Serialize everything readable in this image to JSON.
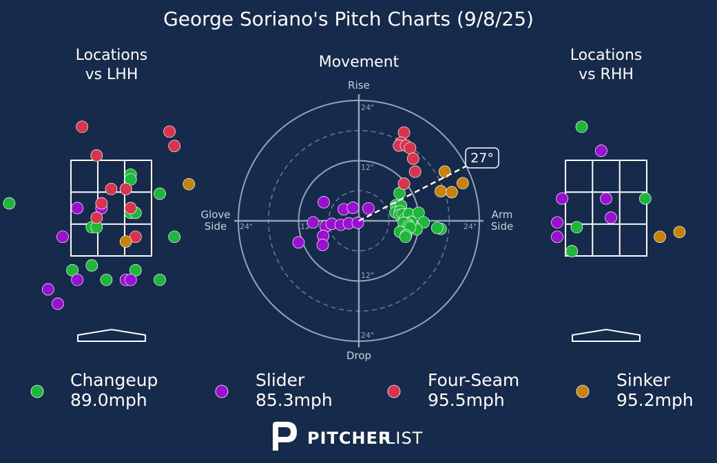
{
  "title": "George Soriano's Pitch Charts (9/8/25)",
  "panels": {
    "lhh_title": [
      "Locations",
      "vs LHH"
    ],
    "movement_title": "Movement",
    "rhh_title": [
      "Locations",
      "vs RHH"
    ]
  },
  "movement_axes": {
    "top": "Rise",
    "bottom": "Drop",
    "left": [
      "Glove",
      "Side"
    ],
    "right": [
      "Arm",
      "Side"
    ],
    "ring_labels": {
      "outer": "24\"",
      "inner": "12\""
    },
    "arm_angle_label": "27°",
    "arm_angle_deg": 27
  },
  "colors": {
    "background": "#162a4c",
    "Changeup": "#1db83a",
    "Slider": "#9a0fd1",
    "Four-Seam": "#d8344e",
    "Sinker": "#c98208"
  },
  "legend": [
    {
      "pitch": "Changeup",
      "speed": "89.0mph"
    },
    {
      "pitch": "Slider",
      "speed": "85.3mph"
    },
    {
      "pitch": "Four-Seam",
      "speed": "95.5mph"
    },
    {
      "pitch": "Sinker",
      "speed": "95.2mph"
    }
  ],
  "logo": {
    "strong": "PITCHER",
    "light": "LIST"
  },
  "chart_data": [
    {
      "type": "scatter",
      "title": "Locations vs LHH",
      "xlim": [
        -2.5,
        2.5
      ],
      "ylim": [
        -0.5,
        4.5
      ],
      "strike_zone": {
        "x": [
          -0.83,
          0.83
        ],
        "y": [
          1.5,
          3.5
        ]
      },
      "series": [
        {
          "name": "Changeup",
          "points": [
            [
              -2.1,
              2.6
            ],
            [
              -0.4,
              2.1
            ],
            [
              -0.3,
              2.1
            ],
            [
              0.4,
              3.2
            ],
            [
              0.4,
              3.1
            ],
            [
              0.4,
              2.4
            ],
            [
              0.5,
              2.4
            ],
            [
              1.0,
              2.8
            ],
            [
              1.3,
              1.9
            ],
            [
              -0.8,
              1.2
            ],
            [
              -0.4,
              1.3
            ],
            [
              -0.1,
              1.0
            ],
            [
              0.5,
              1.2
            ],
            [
              1.0,
              1.0
            ]
          ]
        },
        {
          "name": "Slider",
          "points": [
            [
              -0.7,
              2.5
            ],
            [
              -0.2,
              2.5
            ],
            [
              -1.0,
              1.9
            ],
            [
              -0.7,
              1.0
            ],
            [
              0.3,
              1.0
            ],
            [
              0.4,
              1.0
            ],
            [
              -1.3,
              0.8
            ],
            [
              -1.1,
              0.5
            ]
          ]
        },
        {
          "name": "Four-Seam",
          "points": [
            [
              -0.6,
              4.2
            ],
            [
              1.2,
              4.1
            ],
            [
              1.3,
              3.8
            ],
            [
              -0.3,
              3.6
            ],
            [
              -0.0,
              2.9
            ],
            [
              0.3,
              2.9
            ],
            [
              0.3,
              2.9
            ],
            [
              -0.2,
              2.6
            ],
            [
              0.4,
              2.5
            ],
            [
              -0.3,
              2.3
            ],
            [
              0.5,
              1.9
            ]
          ]
        },
        {
          "name": "Sinker",
          "points": [
            [
              1.6,
              3.0
            ],
            [
              0.3,
              1.8
            ]
          ]
        }
      ]
    },
    {
      "type": "scatter",
      "title": "Movement",
      "xlabel": "Glove Side / Arm Side",
      "ylabel": "Rise / Drop",
      "units": "inches",
      "xlim": [
        -24,
        24
      ],
      "ylim": [
        -24,
        24
      ],
      "rings": [
        6,
        12,
        18,
        24
      ],
      "series": [
        {
          "name": "Changeup",
          "points": [
            [
              8.1,
              5.5
            ],
            [
              7.4,
              3.1
            ],
            [
              8.4,
              3.0
            ],
            [
              7.3,
              1.7
            ],
            [
              8.2,
              1.9
            ],
            [
              8.1,
              1.2
            ],
            [
              8.7,
              1.3
            ],
            [
              9.1,
              0.3
            ],
            [
              10.0,
              1.4
            ],
            [
              11.9,
              1.6
            ],
            [
              12.9,
              -0.3
            ],
            [
              11.0,
              -1.1
            ],
            [
              11.5,
              -1.7
            ],
            [
              10.4,
              -0.2
            ],
            [
              9.6,
              -0.5
            ],
            [
              8.9,
              -0.4
            ],
            [
              9.9,
              -1.0
            ],
            [
              10.2,
              -1.3
            ],
            [
              8.2,
              -2.2
            ],
            [
              9.4,
              -2.9
            ],
            [
              9.3,
              -3.2
            ],
            [
              16.3,
              -1.6
            ],
            [
              15.6,
              -1.4
            ]
          ]
        },
        {
          "name": "Slider",
          "points": [
            [
              -7.0,
              3.7
            ],
            [
              -3.0,
              2.3
            ],
            [
              -1.2,
              2.6
            ],
            [
              1.9,
              2.5
            ],
            [
              -6.6,
              -1.1
            ],
            [
              -5.4,
              -0.6
            ],
            [
              -3.6,
              -0.8
            ],
            [
              -2.0,
              -0.5
            ],
            [
              -0.2,
              -0.4
            ],
            [
              -9.1,
              -0.3
            ],
            [
              -7.1,
              -3.0
            ],
            [
              -7.2,
              -4.8
            ],
            [
              -12.0,
              -4.3
            ]
          ]
        },
        {
          "name": "Four-Seam",
          "points": [
            [
              9.0,
              17.6
            ],
            [
              8.4,
              15.6
            ],
            [
              8.0,
              15.0
            ],
            [
              9.4,
              15.0
            ],
            [
              10.2,
              14.5
            ],
            [
              10.8,
              12.4
            ],
            [
              11.2,
              9.8
            ],
            [
              9.0,
              7.4
            ]
          ]
        },
        {
          "name": "Sinker",
          "points": [
            [
              17.1,
              9.8
            ],
            [
              16.3,
              5.9
            ],
            [
              18.5,
              5.7
            ],
            [
              20.7,
              7.5
            ]
          ]
        }
      ]
    },
    {
      "type": "scatter",
      "title": "Locations vs RHH",
      "xlim": [
        -2.5,
        2.5
      ],
      "ylim": [
        -0.5,
        4.5
      ],
      "strike_zone": {
        "x": [
          -0.83,
          0.83
        ],
        "y": [
          1.5,
          3.5
        ]
      },
      "series": [
        {
          "name": "Changeup",
          "points": [
            [
              -0.5,
              4.2
            ],
            [
              0.8,
              2.7
            ],
            [
              -0.6,
              2.1
            ],
            [
              -0.7,
              1.6
            ]
          ]
        },
        {
          "name": "Slider",
          "points": [
            [
              -0.1,
              3.7
            ],
            [
              -0.9,
              2.7
            ],
            [
              -0.0,
              2.7
            ],
            [
              0.1,
              2.3
            ],
            [
              -1.0,
              2.2
            ],
            [
              -1.0,
              1.9
            ]
          ]
        },
        {
          "name": "Sinker",
          "points": [
            [
              1.1,
              1.9
            ],
            [
              1.5,
              2.0
            ]
          ]
        }
      ]
    }
  ]
}
